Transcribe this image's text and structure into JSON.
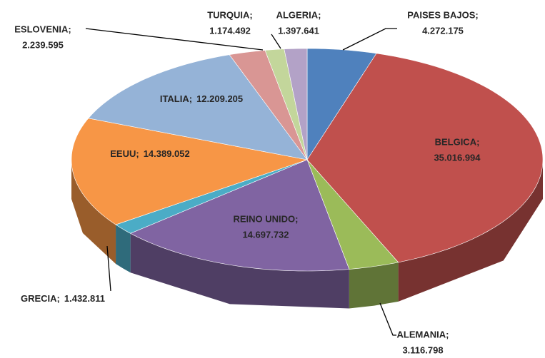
{
  "chart_data": {
    "type": "pie3d",
    "categories": [
      "PAISES BAJOS;",
      "BELGICA;",
      "ALEMANIA;",
      "REINO UNIDO;",
      "GRECIA;",
      "EEUU;",
      "ITALIA;",
      "ESLOVENIA;",
      "TURQUIA;",
      "ALGERIA;"
    ],
    "values": [
      4272175,
      35016994,
      3116798,
      14697732,
      1432811,
      14389052,
      12209205,
      2239595,
      1174492,
      1397641
    ],
    "value_labels": [
      "4.272.175",
      "35.016.994",
      "3.116.798",
      "14.697.732",
      "1.432.811",
      "14.389.052",
      "12.209.205",
      "2.239.595",
      "1.174.492",
      "1.397.641"
    ],
    "colors": [
      "#4f81bd",
      "#c0504d",
      "#9bbb59",
      "#8064a2",
      "#4bacc6",
      "#f79646",
      "#95b3d7",
      "#d99694",
      "#c3d69b",
      "#b3a2c7"
    ]
  }
}
